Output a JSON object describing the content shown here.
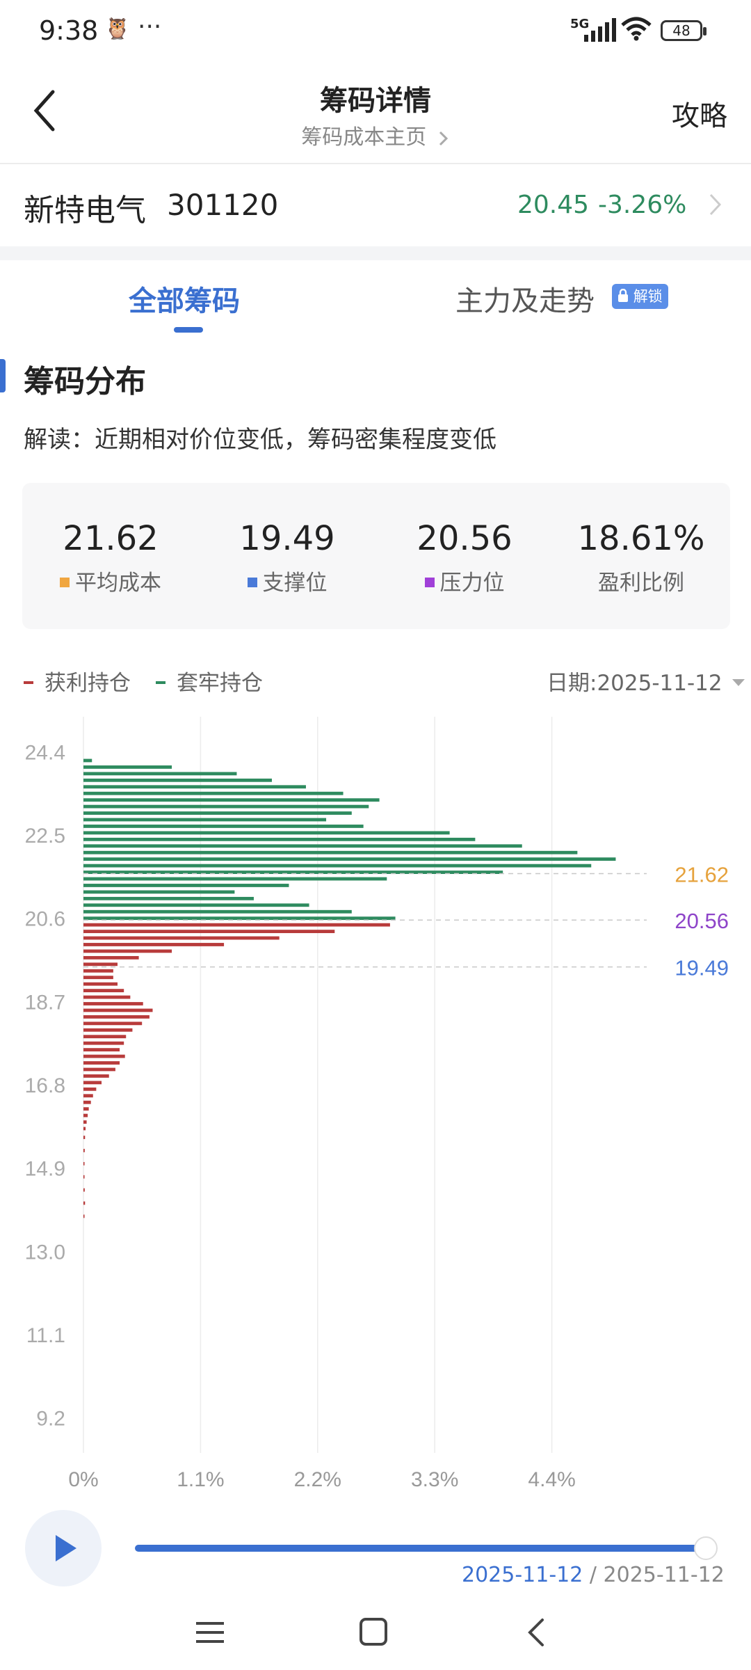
{
  "status": {
    "time": "9:38",
    "net": "5G",
    "battery": "48"
  },
  "header": {
    "title": "筹码详情",
    "subtitle": "筹码成本主页",
    "guide": "攻略"
  },
  "stock": {
    "name": "新特电气",
    "code": "301120",
    "price": "20.45",
    "change": "-3.26%"
  },
  "tabs": {
    "all": "全部筹码",
    "main": "主力及走势",
    "lock_label": "解锁"
  },
  "section": {
    "title": "筹码分布",
    "interpretation": "解读：近期相对价位变低，筹码密集程度变低"
  },
  "stats": [
    {
      "value": "21.62",
      "label": "平均成本",
      "color": "#f0a640"
    },
    {
      "value": "19.49",
      "label": "支撑位",
      "color": "#4a7ad8"
    },
    {
      "value": "20.56",
      "label": "压力位",
      "color": "#a040d8"
    },
    {
      "value": "18.61%",
      "label": "盈利比例",
      "color": ""
    }
  ],
  "legend": {
    "profit": "获利持仓",
    "trapped": "套牢持仓",
    "date_label": "日期:2025-11-12",
    "profit_color": "#b83b3b",
    "trapped_color": "#2e8b5f"
  },
  "chart_data": {
    "type": "bar",
    "orientation": "horizontal",
    "xlim": [
      0,
      5.5
    ],
    "ylim": [
      8.4,
      25.2
    ],
    "x_ticks": [
      "0%",
      "1.1%",
      "2.2%",
      "3.3%",
      "4.4%"
    ],
    "y_ticks": [
      "24.4",
      "22.5",
      "20.6",
      "18.7",
      "16.8",
      "14.9",
      "13.0",
      "11.1",
      "9.2"
    ],
    "grid": true,
    "lines": [
      {
        "label": "21.62",
        "y": 21.62,
        "color": "#e6a23c"
      },
      {
        "label": "20.56",
        "y": 20.56,
        "color": "#8e44c9"
      },
      {
        "label": "19.49",
        "y": 19.49,
        "color": "#4a7ad8"
      }
    ],
    "series": [
      {
        "name": "套牢持仓",
        "color": "#2e8b5f",
        "prices": [
          24.2,
          24.05,
          23.9,
          23.75,
          23.6,
          23.45,
          23.3,
          23.15,
          23.0,
          22.85,
          22.7,
          22.55,
          22.4,
          22.25,
          22.1,
          21.95,
          21.8,
          21.65,
          21.5,
          21.35,
          21.2,
          21.05,
          20.9,
          20.75,
          20.6
        ],
        "values": [
          0.08,
          0.83,
          1.44,
          1.77,
          2.09,
          2.44,
          2.78,
          2.68,
          2.52,
          2.28,
          2.63,
          3.44,
          3.68,
          4.12,
          4.64,
          5.0,
          4.77,
          3.94,
          2.85,
          1.93,
          1.42,
          1.6,
          2.12,
          2.52,
          2.93
        ]
      },
      {
        "name": "获利持仓",
        "color": "#b83b3b",
        "prices": [
          20.45,
          20.3,
          20.15,
          20.0,
          19.85,
          19.7,
          19.55,
          19.4,
          19.25,
          19.1,
          18.95,
          18.8,
          18.65,
          18.5,
          18.35,
          18.2,
          18.05,
          17.9,
          17.75,
          17.6,
          17.45,
          17.3,
          17.15,
          17.0,
          16.85,
          16.7,
          16.55,
          16.4,
          16.25,
          16.1,
          15.95,
          15.8,
          15.6,
          15.3,
          15.0,
          14.7,
          14.4,
          14.1,
          13.8
        ],
        "values": [
          2.88,
          2.36,
          1.84,
          1.32,
          0.83,
          0.52,
          0.32,
          0.28,
          0.28,
          0.32,
          0.38,
          0.44,
          0.56,
          0.65,
          0.62,
          0.55,
          0.46,
          0.4,
          0.38,
          0.34,
          0.39,
          0.34,
          0.3,
          0.24,
          0.17,
          0.12,
          0.09,
          0.07,
          0.05,
          0.04,
          0.03,
          0.02,
          0.015,
          0.012,
          0.01,
          0.01,
          0.012,
          0.015,
          0.01
        ]
      }
    ]
  },
  "playback": {
    "current_date": "2025-11-12",
    "separator": " / ",
    "end_date": "2025-11-12"
  }
}
